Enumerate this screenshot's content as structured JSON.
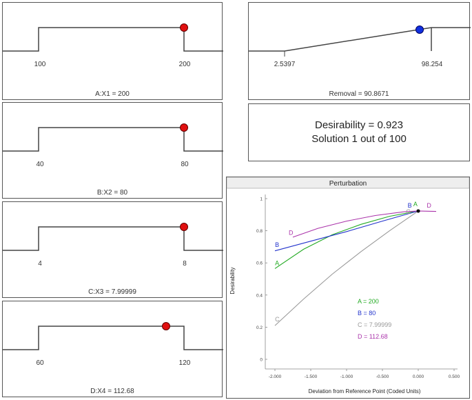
{
  "factors": [
    {
      "id": "a",
      "caption": "A:X1 = 200",
      "low_label": "100",
      "high_label": "200",
      "low": 100,
      "high": 200,
      "value": 200
    },
    {
      "id": "b",
      "caption": "B:X2 = 80",
      "low_label": "40",
      "high_label": "80",
      "low": 40,
      "high": 80,
      "value": 80
    },
    {
      "id": "c",
      "caption": "C:X3 = 7.99999",
      "low_label": "4",
      "high_label": "8",
      "low": 4,
      "high": 8,
      "value": 7.99999
    },
    {
      "id": "d",
      "caption": "D:X4 = 112.68",
      "low_label": "60",
      "high_label": "120",
      "low": 60,
      "high": 120,
      "value": 112.68
    }
  ],
  "response": {
    "caption": "Removal = 90.8671",
    "low_label": "2.5397",
    "high_label": "98.254",
    "low": 2.5397,
    "high": 98.254,
    "value": 90.8671
  },
  "desirability": {
    "line1": "Desirability = 0.923",
    "line2": "Solution 1 out of 100"
  },
  "chart_data": {
    "type": "line",
    "title": "Perturbation",
    "xlabel": "Deviation from Reference Point (Coded Units)",
    "ylabel": "Desirability",
    "xlim": [
      -2.0,
      0.5
    ],
    "ylim": [
      0,
      1
    ],
    "x_ticks": [
      "-2.000",
      "-1.500",
      "-1.000",
      "-0.500",
      "0.000",
      "0.500"
    ],
    "y_ticks": [
      "0",
      "0.2",
      "0.4",
      "0.6",
      "0.8",
      "1"
    ],
    "reference_point": {
      "x": 0,
      "y": 0.923
    },
    "series": [
      {
        "name": "A",
        "legend": "A = 200",
        "color": "#22aa22",
        "points": [
          [
            -2.0,
            0.565
          ],
          [
            -1.6,
            0.685
          ],
          [
            -1.2,
            0.775
          ],
          [
            -0.8,
            0.84
          ],
          [
            -0.4,
            0.89
          ],
          [
            0.0,
            0.923
          ]
        ]
      },
      {
        "name": "B",
        "legend": "B = 80",
        "color": "#2233cc",
        "points": [
          [
            -2.0,
            0.675
          ],
          [
            -1.5,
            0.735
          ],
          [
            -1.0,
            0.795
          ],
          [
            -0.5,
            0.86
          ],
          [
            0.0,
            0.923
          ]
        ]
      },
      {
        "name": "C",
        "legend": "C = 7.99999",
        "color": "#999999",
        "points": [
          [
            -2.0,
            0.21
          ],
          [
            -1.6,
            0.375
          ],
          [
            -1.2,
            0.53
          ],
          [
            -0.8,
            0.67
          ],
          [
            -0.4,
            0.8
          ],
          [
            0.0,
            0.923
          ]
        ]
      },
      {
        "name": "D",
        "legend": "D = 112.68",
        "color": "#aa33aa",
        "points": [
          [
            -1.75,
            0.76
          ],
          [
            -1.4,
            0.815
          ],
          [
            -1.0,
            0.86
          ],
          [
            -0.6,
            0.895
          ],
          [
            -0.2,
            0.918
          ],
          [
            0.0,
            0.923
          ],
          [
            0.25,
            0.92
          ]
        ]
      }
    ]
  }
}
